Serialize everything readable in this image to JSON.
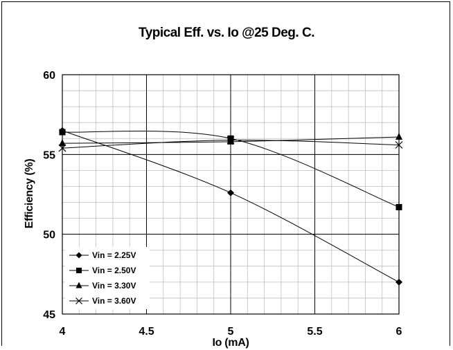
{
  "chart_data": {
    "type": "line",
    "title": "Typical Eff. vs. Io @25 Deg. C.",
    "xlabel": "Io (mA)",
    "ylabel": "Efficiency (%)",
    "xlim": [
      4,
      6
    ],
    "ylim": [
      45,
      60
    ],
    "x_ticks": [
      "4",
      "4.5",
      "5",
      "5.5",
      "6"
    ],
    "y_ticks": [
      "45",
      "50",
      "55",
      "60"
    ],
    "grid": true,
    "legend_position": "bottom-left",
    "series": [
      {
        "name": "Vin = 2.25V",
        "marker": "diamond",
        "x": [
          4,
          5,
          6
        ],
        "y": [
          56.5,
          52.6,
          47.0
        ]
      },
      {
        "name": "Vin = 2.50V",
        "marker": "square",
        "x": [
          4,
          5,
          6
        ],
        "y": [
          56.4,
          56.0,
          51.7
        ]
      },
      {
        "name": "Vin = 3.30V",
        "marker": "triangle",
        "x": [
          4,
          5,
          6
        ],
        "y": [
          55.7,
          55.8,
          56.1
        ]
      },
      {
        "name": "Vin = 3.60V",
        "marker": "x",
        "x": [
          4,
          5,
          6
        ],
        "y": [
          55.4,
          55.9,
          55.6
        ]
      }
    ]
  }
}
